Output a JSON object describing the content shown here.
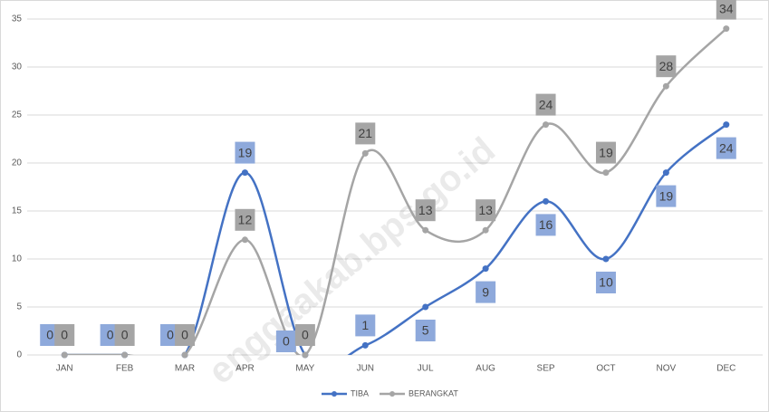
{
  "chart_data": {
    "type": "line",
    "categories": [
      "JAN",
      "FEB",
      "MAR",
      "APR",
      "MAY",
      "JUN",
      "JUL",
      "AUG",
      "SEP",
      "OCT",
      "NOV",
      "DEC"
    ],
    "series": [
      {
        "name": "TIBA",
        "color": "#4472c4",
        "label_color": "#8ea9db",
        "values": [
          0,
          0,
          0,
          19,
          0,
          1,
          5,
          9,
          16,
          10,
          19,
          24
        ]
      },
      {
        "name": "BERANGKAT",
        "color": "#a5a5a5",
        "label_color": "#a5a5a5",
        "values": [
          0,
          0,
          0,
          12,
          0,
          21,
          13,
          13,
          24,
          19,
          28,
          34
        ]
      }
    ],
    "ylim": [
      0,
      35
    ],
    "yticks": [
      0,
      5,
      10,
      15,
      20,
      25,
      30,
      35
    ],
    "grid": true,
    "smooth": true,
    "legend": "bottom",
    "watermark": "enggaakab.bps.go.id"
  }
}
